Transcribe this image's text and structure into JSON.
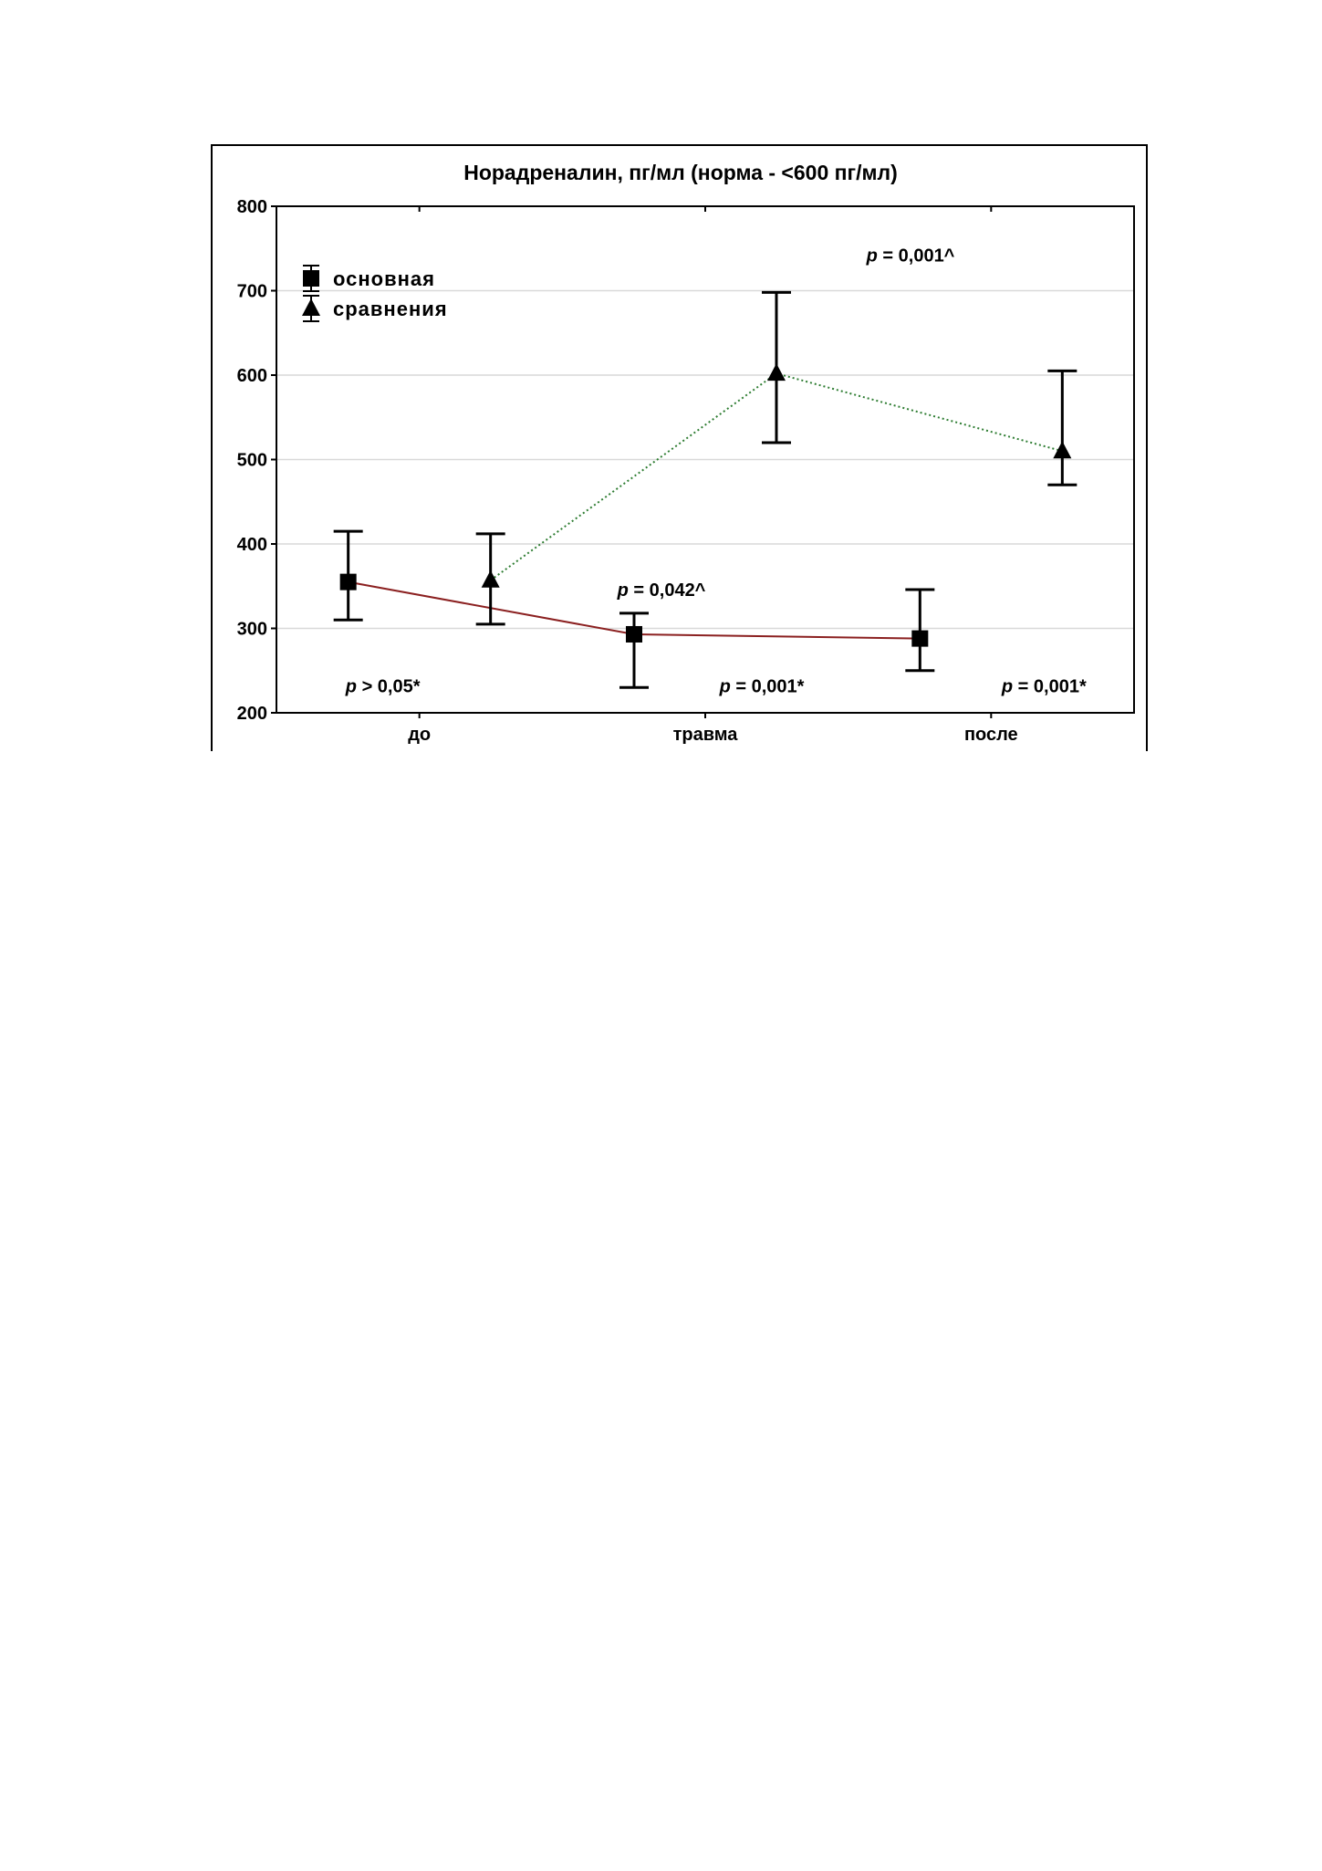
{
  "chart_data": {
    "type": "line",
    "title": "Норадреналин, пг/мл (норма - <600 пг/мл)",
    "xlabel": "",
    "ylabel": "",
    "categories": [
      "до",
      "травма",
      "после"
    ],
    "ylim": [
      200,
      800
    ],
    "yticks": [
      200,
      300,
      400,
      500,
      600,
      700,
      800
    ],
    "grid": true,
    "legend_position": "top-left",
    "series": [
      {
        "name": "основная",
        "marker": "square",
        "line_style": "solid",
        "color": "#8b2020",
        "values": [
          355,
          293,
          288
        ],
        "err_low": [
          310,
          230,
          250
        ],
        "err_high": [
          415,
          318,
          346
        ]
      },
      {
        "name": "сравнения",
        "marker": "triangle",
        "line_style": "dotted",
        "color": "#2e7d32",
        "values": [
          357,
          602,
          510
        ],
        "err_low": [
          305,
          520,
          470
        ],
        "err_high": [
          412,
          698,
          605
        ]
      }
    ],
    "annotations": [
      {
        "p": "p",
        "rest": " > 0,05*",
        "category": 0,
        "y": 232
      },
      {
        "p": "p",
        "rest": " = 0,042^",
        "category": 1,
        "y": 346
      },
      {
        "p": "p",
        "rest": " = 0,001*",
        "category": 1,
        "y": 232
      },
      {
        "p": "p",
        "rest": " = 0,001^",
        "category": 1,
        "y": 742
      },
      {
        "p": "p",
        "rest": " = 0,001*",
        "category": 2,
        "y": 232
      }
    ]
  }
}
